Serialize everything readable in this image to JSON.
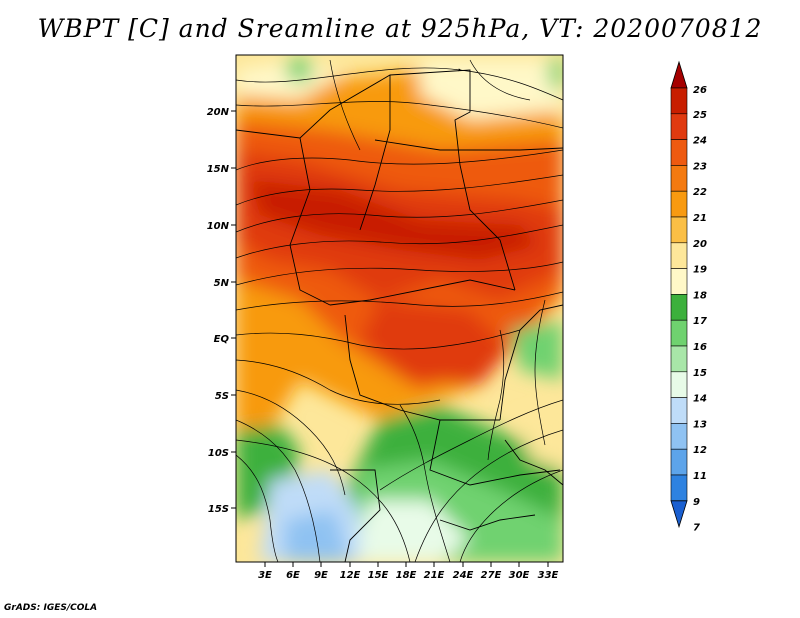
{
  "title": "WBPT [C] and Sreamline at 925hPa, VT: 2020070812",
  "credit": "GrADS: IGES/COLA",
  "lat_labels": [
    "20N",
    "15N",
    "10N",
    "5N",
    "EQ",
    "5S",
    "10S",
    "15S"
  ],
  "lon_labels": [
    "3E",
    "6E",
    "9E",
    "12E",
    "15E",
    "18E",
    "21E",
    "24E",
    "27E",
    "30E",
    "33E"
  ],
  "colorbar": {
    "labels": [
      "26",
      "25",
      "24",
      "23",
      "22",
      "21",
      "20",
      "19",
      "18",
      "17",
      "16",
      "15",
      "14",
      "13",
      "12",
      "11",
      "9",
      "7"
    ],
    "colors": [
      "#a50000",
      "#c81e00",
      "#e03a10",
      "#ee5a10",
      "#f47a10",
      "#f89a10",
      "#fbbf45",
      "#fde79a",
      "#fff8c8",
      "#3cb03c",
      "#6fd26f",
      "#a8e6a8",
      "#e8fbe8",
      "#bfdcf8",
      "#8fc2f2",
      "#5da4ea",
      "#2e82e0",
      "#1a5fd0"
    ]
  }
}
